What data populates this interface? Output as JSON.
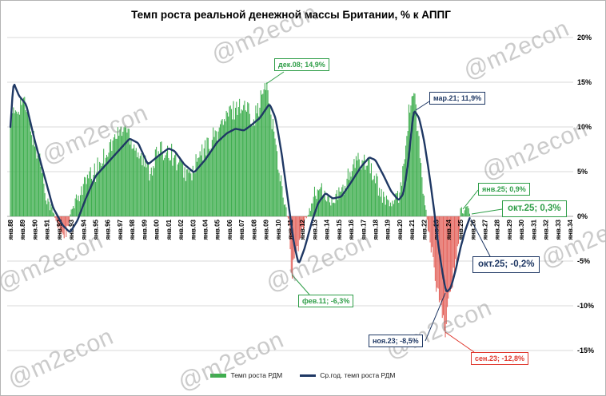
{
  "title": "Темп роста реальной денежной массы Британии, % к АППГ",
  "watermark": "@m2econ",
  "colors": {
    "bar_positive": "#3fae4f",
    "bar_negative": "#e4655e",
    "line": "#1f3864",
    "grid": "#d9d9d9",
    "zero_axis": "#a6a6a6",
    "green": "#2f9e48",
    "navy": "#1f3864",
    "red": "#e0382e"
  },
  "y_axis": {
    "min": -15,
    "max": 20,
    "step": 5,
    "labels": [
      "20%",
      "15%",
      "10%",
      "5%",
      "0%",
      "-5%",
      "-10%",
      "-15%"
    ],
    "grid_values": [
      20,
      15,
      10,
      5,
      0,
      -5,
      -10,
      -15
    ]
  },
  "x_axis": {
    "labels": [
      "янв.88",
      "янв.89",
      "янв.90",
      "янв.91",
      "янв.92",
      "янв.93",
      "янв.94",
      "янв.95",
      "янв.96",
      "янв.97",
      "янв.98",
      "янв.99",
      "янв.00",
      "янв.01",
      "янв.02",
      "янв.03",
      "янв.04",
      "янв.05",
      "янв.06",
      "янв.07",
      "янв.08",
      "янв.09",
      "янв.10",
      "янв.11",
      "янв.12",
      "янв.13",
      "янв.14",
      "янв.15",
      "янв.16",
      "янв.17",
      "янв.18",
      "янв.19",
      "янв.20",
      "янв.21",
      "янв.22",
      "янв.23",
      "янв.24",
      "янв.25",
      "янв.26",
      "янв.27",
      "янв.28",
      "янв.29",
      "янв.30",
      "янв.31",
      "янв.32",
      "янв.33",
      "янв.34"
    ]
  },
  "legend": {
    "items": [
      {
        "label": "Темп роста РДМ",
        "color_key": "bar_positive",
        "shape": "thick"
      },
      {
        "label": "Ср.год. темп роста РДМ",
        "color_key": "line",
        "shape": "line"
      }
    ]
  },
  "annotations": [
    {
      "id": "dec08",
      "label": "дек.08; 14,9%",
      "color": "green",
      "big": false
    },
    {
      "id": "mar21",
      "label": "мар.21; 11,9%",
      "color": "navy",
      "big": false
    },
    {
      "id": "feb11",
      "label": "фев.11; -6,3%",
      "color": "green",
      "big": false
    },
    {
      "id": "nov23",
      "label": "ноя.23; -8,5%",
      "color": "navy",
      "big": false
    },
    {
      "id": "sep23",
      "label": "сен.23; -12,8%",
      "color": "red",
      "big": false
    },
    {
      "id": "jan25",
      "label": "янв.25; 0,9%",
      "color": "green",
      "big": false
    },
    {
      "id": "oct25g",
      "label": "окт.25; 0,3%",
      "color": "green",
      "big": true
    },
    {
      "id": "oct25n",
      "label": "окт.25; -0,2%",
      "color": "navy",
      "big": true
    }
  ],
  "chart_data": {
    "type": "bar",
    "subtype": "monthly bars + centered annual average line",
    "title": "Темп роста реальной денежной массы Британии, % к АППГ",
    "ylabel": "% к АППГ",
    "ylim": [
      -15,
      20
    ],
    "grid": true,
    "x_range_data": [
      "янв.1988",
      "окт.2025"
    ],
    "x_axis_extends_to": "янв.2034",
    "series": [
      {
        "name": "Темп роста РДМ",
        "type": "bar",
        "keypoints_decimal_year": [
          [
            1988.0,
            10.5
          ],
          [
            1988.5,
            12
          ],
          [
            1989.0,
            13
          ],
          [
            1989.5,
            11
          ],
          [
            1990.0,
            8
          ],
          [
            1990.5,
            6
          ],
          [
            1991.0,
            2
          ],
          [
            1991.5,
            0.5
          ],
          [
            1992.0,
            -1.5
          ],
          [
            1992.6,
            -2
          ],
          [
            1993.0,
            0.5
          ],
          [
            1993.5,
            2
          ],
          [
            1994.0,
            3.5
          ],
          [
            1995.0,
            5
          ],
          [
            1996.0,
            7.5
          ],
          [
            1997.0,
            9.5
          ],
          [
            1997.5,
            10
          ],
          [
            1998.0,
            8.5
          ],
          [
            1999.0,
            6
          ],
          [
            1999.5,
            5
          ],
          [
            2000.0,
            7
          ],
          [
            2001.0,
            7.5
          ],
          [
            2002.0,
            5.5
          ],
          [
            2002.8,
            4.5
          ],
          [
            2003.5,
            6.5
          ],
          [
            2004.0,
            7.5
          ],
          [
            2005.0,
            9.5
          ],
          [
            2006.0,
            11.5
          ],
          [
            2006.8,
            12.5
          ],
          [
            2007.5,
            12
          ],
          [
            2008.0,
            11
          ],
          [
            2008.5,
            12.5
          ],
          [
            2008.92,
            14.9
          ],
          [
            2009.2,
            13.5
          ],
          [
            2009.6,
            10
          ],
          [
            2010.0,
            6
          ],
          [
            2010.5,
            2
          ],
          [
            2010.9,
            -1
          ],
          [
            2011.08,
            -6.3
          ],
          [
            2011.5,
            -4.5
          ],
          [
            2012.0,
            -1.5
          ],
          [
            2012.5,
            0.5
          ],
          [
            2013.0,
            2.5
          ],
          [
            2013.5,
            3
          ],
          [
            2014.0,
            2
          ],
          [
            2014.5,
            1.5
          ],
          [
            2015.0,
            2.5
          ],
          [
            2015.5,
            3.5
          ],
          [
            2016.0,
            5
          ],
          [
            2016.5,
            6
          ],
          [
            2017.0,
            6.5
          ],
          [
            2017.5,
            6
          ],
          [
            2018.0,
            4
          ],
          [
            2018.5,
            2.5
          ],
          [
            2019.0,
            1.5
          ],
          [
            2019.5,
            1.5
          ],
          [
            2020.0,
            2.5
          ],
          [
            2020.4,
            7
          ],
          [
            2020.7,
            11
          ],
          [
            2021.0,
            13.5
          ],
          [
            2021.2,
            14
          ],
          [
            2021.5,
            9
          ],
          [
            2021.8,
            5
          ],
          [
            2022.0,
            2
          ],
          [
            2022.3,
            -1
          ],
          [
            2022.7,
            -4.5
          ],
          [
            2023.0,
            -8
          ],
          [
            2023.4,
            -10.5
          ],
          [
            2023.67,
            -12.8
          ],
          [
            2023.9,
            -11.5
          ],
          [
            2024.2,
            -8
          ],
          [
            2024.6,
            -5
          ],
          [
            2024.9,
            -2.5
          ],
          [
            2025.0,
            0.9
          ],
          [
            2025.3,
            0.5
          ],
          [
            2025.6,
            0.8
          ],
          [
            2025.75,
            0.3
          ]
        ],
        "exact_months": [
          [
            "2008-12",
            14.9
          ],
          [
            "2011-02",
            -6.3
          ],
          [
            "2023-09",
            -12.8
          ],
          [
            "2025-01",
            0.9
          ],
          [
            "2025-10",
            0.3
          ]
        ]
      },
      {
        "name": "Ср.год. темп роста РДМ",
        "type": "line",
        "keypoints_decimal_year": [
          [
            1988.0,
            10
          ],
          [
            1988.25,
            15
          ],
          [
            1988.7,
            13.5
          ],
          [
            1989.3,
            12.5
          ],
          [
            1990.0,
            8.5
          ],
          [
            1990.7,
            5
          ],
          [
            1991.5,
            1
          ],
          [
            1992.3,
            -1
          ],
          [
            1992.9,
            -1.8
          ],
          [
            1993.5,
            -0.5
          ],
          [
            1994.2,
            2
          ],
          [
            1995.0,
            4.5
          ],
          [
            1996.0,
            6
          ],
          [
            1997.0,
            7.5
          ],
          [
            1997.8,
            8.7
          ],
          [
            1998.5,
            8.2
          ],
          [
            1999.3,
            5.8
          ],
          [
            2000.2,
            6.8
          ],
          [
            2001.0,
            7.6
          ],
          [
            2001.5,
            7.3
          ],
          [
            2002.3,
            5.8
          ],
          [
            2003.1,
            4.9
          ],
          [
            2004.0,
            6.3
          ],
          [
            2005.0,
            8.3
          ],
          [
            2005.8,
            9.3
          ],
          [
            2006.5,
            9.8
          ],
          [
            2007.2,
            9.6
          ],
          [
            2007.8,
            10.2
          ],
          [
            2008.5,
            11
          ],
          [
            2009.3,
            12.6
          ],
          [
            2009.8,
            11
          ],
          [
            2010.3,
            7
          ],
          [
            2010.8,
            2
          ],
          [
            2011.3,
            -3
          ],
          [
            2011.7,
            -5.4
          ],
          [
            2012.2,
            -3.5
          ],
          [
            2012.8,
            -0.5
          ],
          [
            2013.3,
            1.5
          ],
          [
            2013.9,
            2.6
          ],
          [
            2014.5,
            2
          ],
          [
            2015.2,
            2.2
          ],
          [
            2016.0,
            3.8
          ],
          [
            2016.8,
            5.5
          ],
          [
            2017.5,
            6.6
          ],
          [
            2018.0,
            6.3
          ],
          [
            2018.7,
            4.5
          ],
          [
            2019.3,
            2.8
          ],
          [
            2019.9,
            1.8
          ],
          [
            2020.3,
            2.5
          ],
          [
            2020.7,
            6
          ],
          [
            2021.0,
            10
          ],
          [
            2021.17,
            11.9
          ],
          [
            2021.6,
            11
          ],
          [
            2022.0,
            8.5
          ],
          [
            2022.4,
            5
          ],
          [
            2022.8,
            1
          ],
          [
            2023.2,
            -3.5
          ],
          [
            2023.6,
            -7
          ],
          [
            2023.83,
            -8.5
          ],
          [
            2024.2,
            -8
          ],
          [
            2024.6,
            -6
          ],
          [
            2025.0,
            -3.5
          ],
          [
            2025.4,
            -1.5
          ],
          [
            2025.75,
            -0.2
          ]
        ],
        "marked_values": [
          [
            "2021-03",
            11.9
          ],
          [
            "2023-11",
            -8.5
          ],
          [
            "2025-10",
            -0.2
          ]
        ]
      }
    ]
  }
}
